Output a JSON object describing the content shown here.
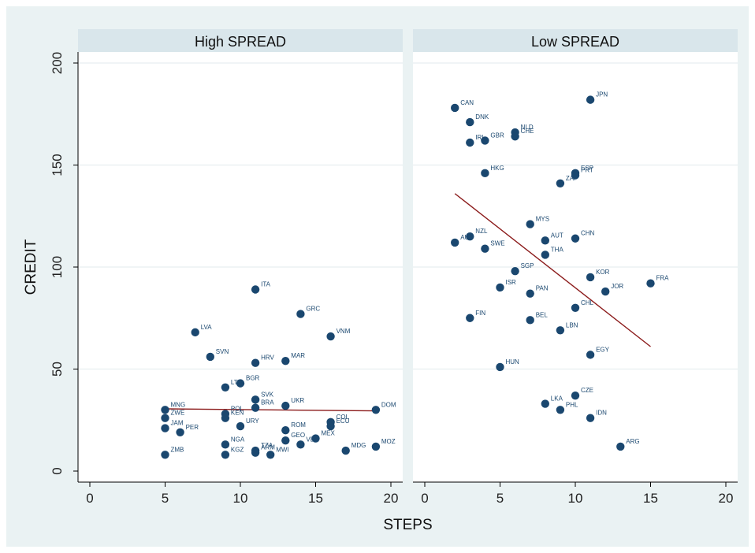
{
  "chart_data": {
    "type": "scatter",
    "xlabel": "STEPS",
    "ylabel": "CREDIT",
    "xlim": [
      0,
      20
    ],
    "ylim": [
      0,
      200
    ],
    "xticks": [
      0,
      5,
      10,
      15,
      20
    ],
    "yticks": [
      0,
      50,
      100,
      150,
      200
    ],
    "grid": "horizontal",
    "marker_color": "#1a476f",
    "fit_color": "#8b1a1a",
    "panels": [
      {
        "title": "High SPREAD",
        "fit_line": {
          "x": [
            5,
            19
          ],
          "y": [
            30.5,
            29.5
          ]
        },
        "points": [
          {
            "label": "ITA",
            "x": 11,
            "y": 89
          },
          {
            "label": "GRC",
            "x": 14,
            "y": 77
          },
          {
            "label": "LVA",
            "x": 7,
            "y": 68
          },
          {
            "label": "VNM",
            "x": 16,
            "y": 66
          },
          {
            "label": "SVN",
            "x": 8,
            "y": 56
          },
          {
            "label": "HRV",
            "x": 11,
            "y": 53
          },
          {
            "label": "MAR",
            "x": 13,
            "y": 54
          },
          {
            "label": "BGR",
            "x": 10,
            "y": 43
          },
          {
            "label": "LTU",
            "x": 9,
            "y": 41
          },
          {
            "label": "SVK",
            "x": 11,
            "y": 35
          },
          {
            "label": "BRA",
            "x": 11,
            "y": 31
          },
          {
            "label": "UKR",
            "x": 13,
            "y": 32
          },
          {
            "label": "DOM",
            "x": 19,
            "y": 30
          },
          {
            "label": "MNG",
            "x": 5,
            "y": 30
          },
          {
            "label": "ZWE",
            "x": 5,
            "y": 26
          },
          {
            "label": "POL",
            "x": 9,
            "y": 28
          },
          {
            "label": "KEN",
            "x": 9,
            "y": 26
          },
          {
            "label": "COL",
            "x": 16,
            "y": 24
          },
          {
            "label": "ECU",
            "x": 16,
            "y": 22
          },
          {
            "label": "JAM",
            "x": 5,
            "y": 21
          },
          {
            "label": "PER",
            "x": 6,
            "y": 19
          },
          {
            "label": "URY",
            "x": 10,
            "y": 22
          },
          {
            "label": "ROM",
            "x": 13,
            "y": 20
          },
          {
            "label": "MEX",
            "x": 15,
            "y": 16
          },
          {
            "label": "GEO",
            "x": 13,
            "y": 15
          },
          {
            "label": "VEN",
            "x": 14,
            "y": 13
          },
          {
            "label": "NGA",
            "x": 9,
            "y": 13
          },
          {
            "label": "TZA",
            "x": 11,
            "y": 10
          },
          {
            "label": "MOZ",
            "x": 19,
            "y": 12
          },
          {
            "label": "MDG",
            "x": 17,
            "y": 10
          },
          {
            "label": "ARM",
            "x": 11,
            "y": 9
          },
          {
            "label": "MWI",
            "x": 12,
            "y": 8
          },
          {
            "label": "KGZ",
            "x": 9,
            "y": 8
          },
          {
            "label": "ZMB",
            "x": 5,
            "y": 8
          }
        ]
      },
      {
        "title": "Low SPREAD",
        "fit_line": {
          "x": [
            2,
            15
          ],
          "y": [
            136,
            61
          ]
        },
        "points": [
          {
            "label": "JPN",
            "x": 11,
            "y": 182
          },
          {
            "label": "CAN",
            "x": 2,
            "y": 178
          },
          {
            "label": "DNK",
            "x": 3,
            "y": 171
          },
          {
            "label": "NLD",
            "x": 6,
            "y": 166
          },
          {
            "label": "CHE",
            "x": 6,
            "y": 164
          },
          {
            "label": "IRL",
            "x": 3,
            "y": 161
          },
          {
            "label": "GBR",
            "x": 4,
            "y": 162
          },
          {
            "label": "HKG",
            "x": 4,
            "y": 146
          },
          {
            "label": "ESP",
            "x": 10,
            "y": 146
          },
          {
            "label": "PRT",
            "x": 10,
            "y": 145
          },
          {
            "label": "ZAF",
            "x": 9,
            "y": 141
          },
          {
            "label": "MYS",
            "x": 7,
            "y": 121
          },
          {
            "label": "NZL",
            "x": 3,
            "y": 115
          },
          {
            "label": "AUT",
            "x": 8,
            "y": 113
          },
          {
            "label": "CHN",
            "x": 10,
            "y": 114
          },
          {
            "label": "AUS",
            "x": 2,
            "y": 112
          },
          {
            "label": "SWE",
            "x": 4,
            "y": 109
          },
          {
            "label": "THA",
            "x": 8,
            "y": 106
          },
          {
            "label": "SGP",
            "x": 6,
            "y": 98
          },
          {
            "label": "KOR",
            "x": 11,
            "y": 95
          },
          {
            "label": "FRA",
            "x": 15,
            "y": 92
          },
          {
            "label": "ISR",
            "x": 5,
            "y": 90
          },
          {
            "label": "JOR",
            "x": 12,
            "y": 88
          },
          {
            "label": "PAN",
            "x": 7,
            "y": 87
          },
          {
            "label": "CHL",
            "x": 10,
            "y": 80
          },
          {
            "label": "FIN",
            "x": 3,
            "y": 75
          },
          {
            "label": "BEL",
            "x": 7,
            "y": 74
          },
          {
            "label": "LBN",
            "x": 9,
            "y": 69
          },
          {
            "label": "EGY",
            "x": 11,
            "y": 57
          },
          {
            "label": "HUN",
            "x": 5,
            "y": 51
          },
          {
            "label": "CZE",
            "x": 10,
            "y": 37
          },
          {
            "label": "LKA",
            "x": 8,
            "y": 33
          },
          {
            "label": "PHL",
            "x": 9,
            "y": 30
          },
          {
            "label": "IDN",
            "x": 11,
            "y": 26
          },
          {
            "label": "ARG",
            "x": 13,
            "y": 12
          }
        ]
      }
    ]
  }
}
